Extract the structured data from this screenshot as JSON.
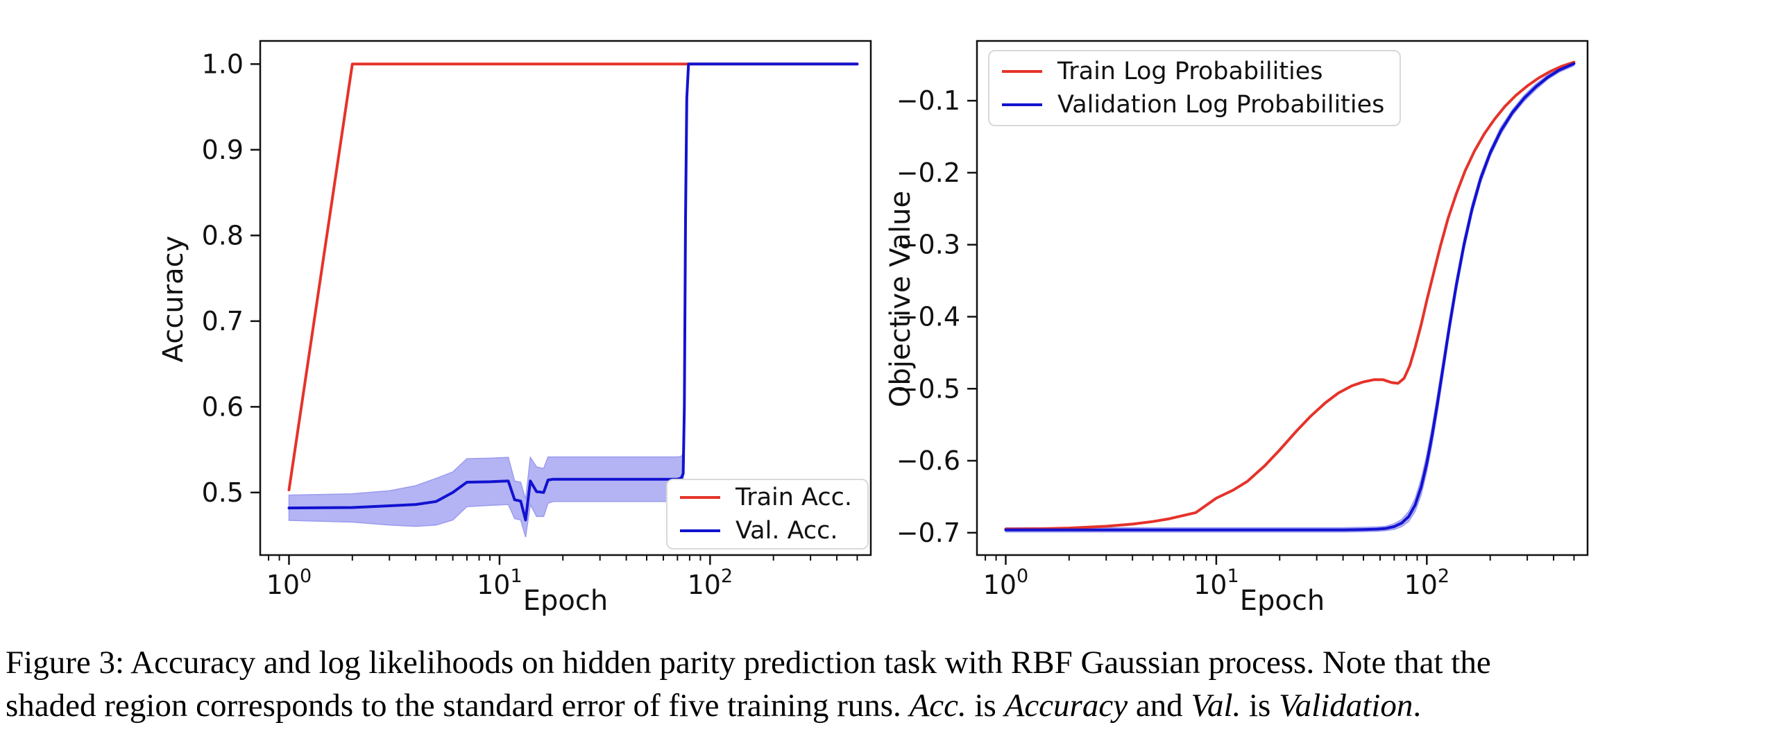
{
  "caption": {
    "lines": [
      [
        {
          "t": "Figure 3: Accuracy and log likelihoods on hidden parity prediction task with RBF Gaussian process. Note that the",
          "i": false
        }
      ],
      [
        {
          "t": "shaded region corresponds to the standard error of five training runs. ",
          "i": false
        },
        {
          "t": "Acc.",
          "i": true
        },
        {
          "t": " is ",
          "i": false
        },
        {
          "t": "Accuracy",
          "i": true
        },
        {
          "t": " and ",
          "i": false
        },
        {
          "t": "Val.",
          "i": true
        },
        {
          "t": " is ",
          "i": false
        },
        {
          "t": "Validation",
          "i": true
        },
        {
          "t": ".",
          "i": false
        }
      ]
    ]
  },
  "chart_data": [
    {
      "type": "line",
      "title": "",
      "xlabel": "Epoch",
      "ylabel": "Accuracy",
      "xscale": "log",
      "xlim": [
        0.73,
        580
      ],
      "ylim": [
        0.427,
        1.027
      ],
      "grid": false,
      "yticks": [
        {
          "value": 0.5,
          "label": "0.5"
        },
        {
          "value": 0.6,
          "label": "0.6"
        },
        {
          "value": 0.7,
          "label": "0.7"
        },
        {
          "value": 0.8,
          "label": "0.8"
        },
        {
          "value": 0.9,
          "label": "0.9"
        },
        {
          "value": 1.0,
          "label": "1.0"
        }
      ],
      "xticks": [
        {
          "value": 1,
          "mantissa": "10",
          "exponent": "0"
        },
        {
          "value": 10,
          "mantissa": "10",
          "exponent": "1"
        },
        {
          "value": 100,
          "mantissa": "10",
          "exponent": "2"
        }
      ],
      "xticks_minor": [
        0.8,
        0.9,
        2,
        3,
        4,
        5,
        6,
        7,
        8,
        9,
        20,
        30,
        40,
        50,
        60,
        70,
        80,
        90,
        200,
        300,
        400,
        500
      ],
      "legend_position": "lower right",
      "series": [
        {
          "name": "Train Acc.",
          "color": "#e5332a",
          "x": [
            1,
            2,
            3,
            500
          ],
          "y": [
            0.503,
            1.0,
            1.0,
            1.0
          ]
        },
        {
          "name": "Val. Acc.",
          "color": "#1212d0",
          "band_color": "#b4b4f4",
          "x": [
            1,
            2,
            3,
            4,
            5,
            6,
            7,
            9,
            10,
            11,
            11.8,
            12.6,
            13.3,
            14,
            15,
            16.2,
            17,
            18,
            25,
            40,
            60,
            70,
            73,
            74.5,
            75.5,
            76.5,
            77.5,
            79,
            100,
            500
          ],
          "y": [
            0.482,
            0.4825,
            0.4845,
            0.486,
            0.4895,
            0.5,
            0.512,
            0.5125,
            0.513,
            0.5135,
            0.4915,
            0.49,
            0.468,
            0.5135,
            0.501,
            0.5,
            0.5145,
            0.5155,
            0.5155,
            0.5155,
            0.5155,
            0.5155,
            0.517,
            0.522,
            0.6,
            0.82,
            0.96,
            1.0,
            1.0,
            1.0
          ],
          "band_upper": [
            0.497,
            0.4985,
            0.502,
            0.508,
            0.5165,
            0.524,
            0.5395,
            0.54,
            0.5405,
            0.541,
            0.5135,
            0.512,
            0.492,
            0.541,
            0.53,
            0.528,
            0.5415,
            0.5415,
            0.5415,
            0.5415,
            0.5415,
            0.5415,
            0.542,
            0.546,
            0.625,
            0.845,
            0.975,
            1.0,
            1.0,
            1.0
          ],
          "band_lower": [
            0.4675,
            0.4655,
            0.462,
            0.4605,
            0.462,
            0.468,
            0.4835,
            0.485,
            0.4855,
            0.486,
            0.4695,
            0.468,
            0.448,
            0.486,
            0.472,
            0.472,
            0.4875,
            0.4895,
            0.4895,
            0.4895,
            0.4895,
            0.4895,
            0.492,
            0.498,
            0.575,
            0.795,
            0.945,
            1.0,
            1.0,
            1.0
          ]
        }
      ]
    },
    {
      "type": "line",
      "title": "",
      "xlabel": "Epoch",
      "ylabel": "Objective Value",
      "xscale": "log",
      "xlim": [
        0.73,
        580
      ],
      "ylim": [
        -0.731,
        -0.017
      ],
      "grid": false,
      "yticks": [
        {
          "value": -0.7,
          "label": "−0.7"
        },
        {
          "value": -0.6,
          "label": "−0.6"
        },
        {
          "value": -0.5,
          "label": "−0.5"
        },
        {
          "value": -0.4,
          "label": "−0.4"
        },
        {
          "value": -0.3,
          "label": "−0.3"
        },
        {
          "value": -0.2,
          "label": "−0.2"
        },
        {
          "value": -0.1,
          "label": "−0.1"
        }
      ],
      "xticks": [
        {
          "value": 1,
          "mantissa": "10",
          "exponent": "0"
        },
        {
          "value": 10,
          "mantissa": "10",
          "exponent": "1"
        },
        {
          "value": 100,
          "mantissa": "10",
          "exponent": "2"
        }
      ],
      "xticks_minor": [
        0.8,
        0.9,
        2,
        3,
        4,
        5,
        6,
        7,
        8,
        9,
        20,
        30,
        40,
        50,
        60,
        70,
        80,
        90,
        200,
        300,
        400,
        500
      ],
      "legend_position": "upper left",
      "series": [
        {
          "name": "Train Log Probabilities",
          "color": "#e5332a",
          "x": [
            1,
            1.5,
            2,
            3,
            4,
            5,
            6,
            8,
            10,
            12,
            14,
            17,
            20,
            24,
            28,
            33,
            38,
            44,
            50,
            56,
            62,
            68,
            73,
            78,
            83,
            88,
            94,
            100,
            108,
            116,
            126,
            138,
            152,
            168,
            188,
            210,
            235,
            265,
            300,
            340,
            385,
            435,
            500
          ],
          "y": [
            -0.695,
            -0.6945,
            -0.6935,
            -0.691,
            -0.688,
            -0.6845,
            -0.6805,
            -0.672,
            -0.652,
            -0.641,
            -0.629,
            -0.607,
            -0.585,
            -0.559,
            -0.5385,
            -0.5195,
            -0.506,
            -0.496,
            -0.4905,
            -0.4875,
            -0.4875,
            -0.4915,
            -0.4925,
            -0.4855,
            -0.468,
            -0.443,
            -0.411,
            -0.3775,
            -0.338,
            -0.302,
            -0.264,
            -0.2295,
            -0.1975,
            -0.1705,
            -0.1455,
            -0.1255,
            -0.108,
            -0.0925,
            -0.0795,
            -0.0685,
            -0.0595,
            -0.0525,
            -0.0465
          ]
        },
        {
          "name": "Validation Log Probabilities",
          "color": "#1212d0",
          "band_color": "#b4b4f4",
          "x": [
            1,
            20,
            40,
            50,
            58,
            64,
            70,
            76,
            82,
            88,
            94,
            100,
            106,
            112,
            120,
            128,
            138,
            150,
            164,
            180,
            200,
            225,
            255,
            290,
            330,
            375,
            425,
            500
          ],
          "y": [
            -0.696,
            -0.696,
            -0.696,
            -0.6955,
            -0.695,
            -0.694,
            -0.6915,
            -0.6865,
            -0.6775,
            -0.6615,
            -0.6365,
            -0.6035,
            -0.5645,
            -0.5225,
            -0.4665,
            -0.4135,
            -0.3565,
            -0.3005,
            -0.2505,
            -0.2085,
            -0.1725,
            -0.1415,
            -0.1165,
            -0.0965,
            -0.0805,
            -0.0675,
            -0.0575,
            -0.0485
          ],
          "band_upper": [
            -0.693,
            -0.693,
            -0.693,
            -0.6925,
            -0.692,
            -0.691,
            -0.6875,
            -0.6815,
            -0.6705,
            -0.6525,
            -0.6255,
            -0.5915,
            -0.5525,
            -0.5105,
            -0.4555,
            -0.4035,
            -0.3475,
            -0.2925,
            -0.2435,
            -0.2025,
            -0.1675,
            -0.1365,
            -0.1125,
            -0.0925,
            -0.0765,
            -0.0645,
            -0.0545,
            -0.0455
          ],
          "band_lower": [
            -0.699,
            -0.699,
            -0.699,
            -0.6985,
            -0.698,
            -0.697,
            -0.6955,
            -0.6915,
            -0.6845,
            -0.6705,
            -0.6475,
            -0.6155,
            -0.5765,
            -0.5345,
            -0.4775,
            -0.4235,
            -0.3655,
            -0.3085,
            -0.2575,
            -0.2145,
            -0.1775,
            -0.1465,
            -0.1205,
            -0.1005,
            -0.0845,
            -0.0705,
            -0.0605,
            -0.0515
          ]
        }
      ]
    }
  ]
}
